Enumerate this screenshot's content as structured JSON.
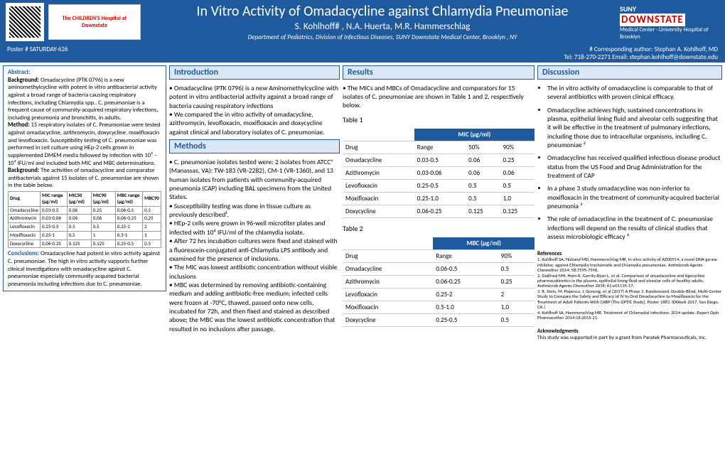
{
  "header": {
    "title": "In Vitro Activity of Omadacycline against Chlamydia Pneumoniae",
    "authors": "S. Kohlhoff# , N.A. Huerta, M.R. Hammerschlag",
    "affiliation": "Department of Pediatrics, Division of Infectious Diseases, SUNY Downstate Medical Center, Brooklyn , NY",
    "kids_logo": "The CHILDREN'S Hospital at Downstate",
    "suny_top": "SUNY",
    "suny_mid": "DOWNSTATE",
    "suny_bot": "Medical Center · University Hospital of Brooklyn"
  },
  "subheader": {
    "left": "Poster # SATURDAY-626",
    "right_top": "# Corresponding author: Stephan A. Kohlhoff, MD",
    "right_bot": "Tel: 718-270-2271 Email: stephan.kohlhoff@downstate.edu"
  },
  "abstract": {
    "title": "Abstract:",
    "bg_label": "Background:",
    "bg_text": " Omadacycline (PTK 0796) is a new aminomethylcycline with potent in vitro antibacterial activity against a broad range of bacteria causing respiratory infections, including Chlamydia spp.. C. pneumoniae is a frequent cause of community-acquired respiratory infections, including pneumonia and bronchitis, in adults.",
    "method_label": "Method:",
    "method_text": " 15 respiratory isolates of C. Pneumoniae were tested against omadacycline, azithromycin, doxycycline, moxifloxacin and levofloxacin. Susceptibility testing of C. pneumoniae was performed in cell culture using HEp-2 cells grown in supplemented DMEM media followed by infection with 10³ – 10⁴ IFU/ml and included both MIC and MBC determinations.",
    "bg2_label": "Background:",
    "bg2_text": " The activities of omadacycline and comparator antibacterials against 15 isolates of C. pneumoniae are shown in the table below.",
    "table": {
      "headers": [
        "Drug",
        "MIC range (µg/ml)",
        "MIC50 (µg/ml)",
        "MIC90 (µg/ml)",
        "MBC range (µg/ml)",
        "MBC90"
      ],
      "rows": [
        [
          "Omadacycline",
          "0.03-0.5",
          "0.06",
          "0.25",
          "0.06-0.5",
          "0.5"
        ],
        [
          "Azithromycin",
          "0.03-0.06",
          "0.06",
          "0.06",
          "0.06-0.25",
          "0.25"
        ],
        [
          "Levofloxacin",
          "0.25-0.5",
          "0.5",
          "0.5",
          "0.25-2",
          "2"
        ],
        [
          "Moxifloxacin",
          "0.25-1",
          "0.5",
          "1",
          "0.5-1",
          "1"
        ],
        [
          "Doxycycline",
          "0.06-0.25",
          "0.125",
          "0.125",
          "0.25-0.5",
          "0.5"
        ]
      ]
    },
    "conc_label": "Conclusions:",
    "conc_text": " Omadacycline had potent in vitro activity against C. pneumoniae. The high in vitro activity supports further clinical investigations with omadacycline against C. pneumoniae especially community-acquired bacterial pneumonia including infections due to C. pneumoniae."
  },
  "intro": {
    "title": "Introduction",
    "b1": "• Omadacycline (PTK 0796) is a new Aminomethylcycline with potent in vitro antibacterial activity against a broad range of bacteria causing respiratory infections",
    "b2": "• We compared the in vitro activity of omadacycline, azithromycin, levofloxacin, moxifloxacin and doxycycline against clinical and laboratory isolates of C. pneumoniae."
  },
  "methods": {
    "title": "Methods",
    "b1": "• C. pneumoniae isolates tested were: 2 isolates from ATCC® (Manassas, VA): TW-183 (VR-2282), CM-1 (VR-1360), and 13 human isolates from patients with community-acquired pneumonia (CAP) including BAL specimens from the United States.",
    "b2": "• Susceptibility testing was done in tissue culture as previously described¹.",
    "b3": "• HEp-2 cells were grown in 96-well microtiter plates and infected with 10⁴ IFU/ml of the chlamydia isolate.",
    "b4": "• After 72 hrs incubation cultures were fixed and stained with a fluorescein-conjugated anti-Chlamydia LPS antibody and examined for the presence of inclusions.",
    "b5": "• The MIC was lowest antibiotic concentration without visible inclusions",
    "b6": "• MBC was determined by removing antibiotic-containing medium and adding antibiotic-free medium; infected cells were frozen at -70°C, thawed, passed onto new cells, incubated for 72h, and then fixed and stained as described above; the MBC was the lowest antibiotic concentration that resulted in no inclusions after passage."
  },
  "results": {
    "title": "Results",
    "intro": "• The MICs and MBCs of Omadacycline and comparators for 15 isolates of C. pneumoniae are shown in Table 1 and 2, respectively below.",
    "t1_label": "Table 1",
    "t1_head": "MIC (µg/ml)",
    "t1_cols": [
      "Drug",
      "Range",
      "50%",
      "90%"
    ],
    "t1_rows": [
      [
        "Omadacycline",
        "0.03-0.5",
        "0.06",
        "0.25"
      ],
      [
        "Azithromycin",
        "0.03-0.06",
        "0.06",
        "0.06"
      ],
      [
        "Levofloxacin",
        "0.25-0.5",
        "0.5",
        "0.5"
      ],
      [
        "Moxifloxacin",
        "0.25-1.0",
        "0.5",
        "1.0"
      ],
      [
        "Doxycycline",
        "0.06-0.25",
        "0.125",
        "0.125"
      ]
    ],
    "t2_label": "Table 2",
    "t2_head": "MBC (µg/ml)",
    "t2_cols": [
      "Drug",
      "Range",
      "90%"
    ],
    "t2_rows": [
      [
        "Omadacycline",
        "0.06-0.5",
        "0.5"
      ],
      [
        "Azithromycin",
        "0.06-0.25",
        "0.25"
      ],
      [
        "Levofloxacin",
        "0.25-2",
        "2"
      ],
      [
        "Moxifloxacin",
        "0.5-1.0",
        "1.0"
      ],
      [
        "Doxycycline",
        "0.25-0.5",
        "0.5"
      ]
    ]
  },
  "discussion": {
    "title": "Discussion",
    "items": [
      "The in vitro activity of omadacycline is comparable to that of several antibiotics with proven clinical efficacy.",
      "Omadacycline achieves high, sustained concentrations in plasma, epithelial lining fluid and alveolar cells suggesting that it will be effective in the treatment of pulmonary infections, including those due to intracellular organisms, including C. pneumoniae ²",
      "Omadacycline has received qualified infectious disease product status from the US Food and Drug Administration for the treatment of CAP",
      "In a phase 3 study omadacycline was non-inferior to moxifloxacin in the treatment of community-acquired bacterial pneumonia ³",
      "The role of omadacycline in the treatment of C. pneumoniae infections will depend on the results of clinical studies that assess microbiologic efficacy ⁴"
    ],
    "refs_title": "References",
    "refs": [
      "1. Kohlhoff SA, Huband MD, Hammerschlag MR. In vitro activity of AZD0914, a novel DNA gyrase inhibitor, against Chlamydia trachomatis and Chlamydia pneumoniae. Antimicrob Agents Chemother 2014; 58:7595-7596.",
      "2. Gotfried MH, Horn K, Garrity-Ryan L, et al. Comparison of omadacycline and tigecycline pharmacokinetics in the plasma, epithelial lining fluid and alveolar cells of healthy adults. Antimicrob Agents Chemother 2018; 61:e01135-17.",
      "3. R. Stets, M. Popescu, J. Gonong, et al (2017) A Phase 3, Randomized, Double-Blind, Multi-Center Study to Compare the Safety and Efficacy of IV to Oral Omadacycline to Moxifloxacin for the Treatment of Adult Patients With CABP (The OPTIC Study). Poster 1883. IDWeek 2017, San Diego, CA.]",
      "4. Kohlhoff SA, Hammerschlag MR. Treatment of Chlamydial infections: 2014 update. Expert Opin Pharmacother 2014;16:2015-21."
    ],
    "ack_title": "Acknowledgments",
    "ack": "This study was supported in part by a grant from Paratek Pharmaceuticals, Inc."
  }
}
